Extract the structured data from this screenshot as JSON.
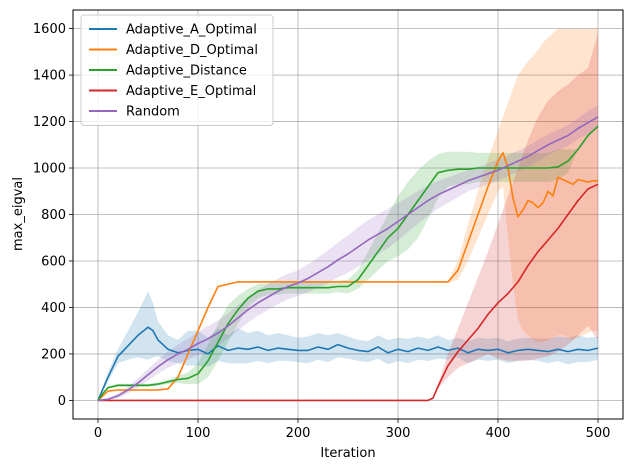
{
  "chart_data": {
    "type": "line",
    "title": "",
    "xlabel": "Iteration",
    "ylabel": "max_eigval",
    "xlim": [
      -25,
      525
    ],
    "ylim": [
      -80,
      1680
    ],
    "xticks": [
      0,
      100,
      200,
      300,
      400,
      500
    ],
    "yticks": [
      0,
      200,
      400,
      600,
      800,
      1000,
      1200,
      1400,
      1600
    ],
    "grid": true,
    "legend_position": "top-left",
    "series": [
      {
        "name": "Adaptive_A_Optimal",
        "color": "#1f77b4",
        "x": [
          0,
          10,
          20,
          30,
          40,
          50,
          55,
          60,
          70,
          80,
          90,
          100,
          110,
          120,
          130,
          140,
          150,
          160,
          170,
          180,
          190,
          200,
          210,
          220,
          230,
          240,
          250,
          260,
          270,
          280,
          290,
          300,
          310,
          320,
          330,
          340,
          350,
          360,
          370,
          380,
          390,
          400,
          410,
          420,
          430,
          440,
          450,
          460,
          470,
          480,
          490,
          500
        ],
        "y": [
          0,
          100,
          190,
          235,
          280,
          315,
          300,
          260,
          220,
          205,
          215,
          220,
          200,
          235,
          215,
          225,
          220,
          230,
          215,
          225,
          220,
          215,
          215,
          230,
          220,
          240,
          225,
          215,
          210,
          230,
          205,
          220,
          210,
          225,
          215,
          230,
          215,
          225,
          205,
          220,
          215,
          220,
          205,
          215,
          220,
          215,
          210,
          220,
          210,
          220,
          215,
          225
        ],
        "upper": [
          0,
          120,
          220,
          300,
          380,
          470,
          420,
          340,
          280,
          260,
          300,
          300,
          270,
          310,
          280,
          310,
          290,
          300,
          280,
          290,
          280,
          270,
          275,
          290,
          280,
          290,
          275,
          260,
          255,
          280,
          260,
          270,
          265,
          275,
          265,
          280,
          260,
          270,
          255,
          270,
          265,
          270,
          255,
          265,
          270,
          265,
          265,
          275,
          270,
          280,
          270,
          275
        ],
        "lower": [
          0,
          80,
          160,
          175,
          185,
          175,
          185,
          190,
          170,
          160,
          150,
          150,
          145,
          170,
          160,
          160,
          160,
          170,
          160,
          170,
          170,
          165,
          160,
          175,
          165,
          185,
          180,
          170,
          165,
          180,
          155,
          170,
          160,
          175,
          170,
          180,
          175,
          185,
          160,
          175,
          170,
          175,
          160,
          170,
          175,
          170,
          160,
          170,
          155,
          165,
          165,
          175
        ]
      },
      {
        "name": "Adaptive_D_Optimal",
        "color": "#ff7f0e",
        "x": [
          0,
          10,
          20,
          40,
          60,
          70,
          80,
          90,
          100,
          110,
          120,
          140,
          160,
          200,
          250,
          300,
          330,
          350,
          360,
          370,
          380,
          390,
          400,
          405,
          410,
          415,
          420,
          425,
          430,
          435,
          440,
          445,
          450,
          455,
          460,
          465,
          470,
          475,
          480,
          485,
          490,
          495,
          500
        ],
        "y": [
          0,
          40,
          45,
          45,
          45,
          50,
          100,
          200,
          300,
          400,
          490,
          510,
          510,
          510,
          510,
          510,
          510,
          510,
          560,
          680,
          800,
          920,
          1030,
          1065,
          1000,
          870,
          790,
          820,
          860,
          850,
          830,
          850,
          900,
          880,
          960,
          950,
          940,
          930,
          950,
          945,
          940,
          945,
          945
        ],
        "upper": [
          0,
          42,
          47,
          47,
          47,
          52,
          102,
          202,
          302,
          402,
          492,
          512,
          512,
          512,
          512,
          512,
          512,
          515,
          600,
          760,
          900,
          1040,
          1160,
          1220,
          1280,
          1340,
          1400,
          1430,
          1460,
          1480,
          1510,
          1540,
          1560,
          1580,
          1600,
          1600,
          1600,
          1600,
          1600,
          1600,
          1600,
          1600,
          1600
        ],
        "lower": [
          0,
          38,
          43,
          43,
          43,
          48,
          98,
          198,
          298,
          398,
          488,
          508,
          508,
          508,
          508,
          508,
          508,
          505,
          520,
          600,
          700,
          800,
          900,
          920,
          700,
          500,
          350,
          300,
          280,
          260,
          250,
          250,
          260,
          270,
          280,
          280,
          270,
          260,
          270,
          280,
          290,
          300,
          300
        ]
      },
      {
        "name": "Adaptive_Distance",
        "color": "#2ca02c",
        "x": [
          0,
          5,
          10,
          20,
          30,
          40,
          50,
          60,
          70,
          80,
          90,
          100,
          110,
          120,
          130,
          140,
          150,
          160,
          170,
          180,
          190,
          200,
          210,
          220,
          230,
          240,
          250,
          260,
          270,
          280,
          290,
          300,
          310,
          320,
          330,
          340,
          350,
          360,
          370,
          380,
          390,
          400,
          410,
          420,
          430,
          440,
          450,
          460,
          470,
          480,
          490,
          500
        ],
        "y": [
          0,
          30,
          55,
          65,
          65,
          65,
          65,
          70,
          80,
          90,
          95,
          115,
          170,
          250,
          330,
          390,
          440,
          470,
          480,
          480,
          485,
          485,
          485,
          485,
          485,
          490,
          490,
          520,
          580,
          640,
          700,
          740,
          800,
          860,
          920,
          980,
          990,
          995,
          995,
          1000,
          1000,
          1000,
          1000,
          1000,
          1000,
          1000,
          1000,
          1005,
          1030,
          1080,
          1140,
          1180
        ],
        "upper": [
          0,
          33,
          60,
          72,
          72,
          72,
          72,
          77,
          90,
          105,
          120,
          160,
          240,
          330,
          410,
          450,
          480,
          500,
          505,
          505,
          510,
          510,
          510,
          510,
          510,
          515,
          520,
          560,
          640,
          720,
          800,
          880,
          940,
          990,
          1030,
          1060,
          1070,
          1070,
          1070,
          1065,
          1065,
          1065,
          1065,
          1065,
          1065,
          1065,
          1065,
          1080,
          1080,
          1080,
          1140,
          1180
        ],
        "lower": [
          0,
          27,
          50,
          58,
          58,
          58,
          58,
          63,
          70,
          75,
          70,
          70,
          100,
          170,
          250,
          330,
          400,
          440,
          455,
          455,
          460,
          460,
          460,
          460,
          460,
          465,
          460,
          480,
          520,
          560,
          600,
          620,
          650,
          700,
          780,
          870,
          920,
          930,
          930,
          940,
          940,
          940,
          940,
          940,
          940,
          940,
          940,
          950,
          980,
          1080,
          1140,
          1180
        ]
      },
      {
        "name": "Adaptive_E_Optimal",
        "color": "#d62728",
        "x": [
          0,
          100,
          200,
          300,
          330,
          335,
          340,
          350,
          360,
          370,
          380,
          390,
          400,
          410,
          420,
          430,
          440,
          450,
          460,
          470,
          480,
          490,
          500
        ],
        "y": [
          0,
          0,
          0,
          0,
          0,
          10,
          60,
          150,
          210,
          260,
          310,
          370,
          420,
          460,
          510,
          580,
          640,
          690,
          740,
          800,
          860,
          910,
          930
        ],
        "upper": [
          0,
          0,
          0,
          0,
          0,
          12,
          70,
          200,
          310,
          420,
          530,
          640,
          760,
          880,
          1000,
          1120,
          1220,
          1290,
          1330,
          1360,
          1400,
          1430,
          1580
        ],
        "lower": [
          0,
          0,
          0,
          0,
          0,
          8,
          50,
          100,
          140,
          160,
          180,
          200,
          180,
          170,
          170,
          170,
          180,
          190,
          210,
          240,
          280,
          320,
          260
        ]
      },
      {
        "name": "Random",
        "color": "#9467bd",
        "x": [
          0,
          10,
          20,
          30,
          40,
          50,
          60,
          70,
          80,
          90,
          100,
          110,
          120,
          130,
          140,
          150,
          160,
          170,
          180,
          190,
          200,
          210,
          220,
          230,
          240,
          250,
          260,
          270,
          280,
          290,
          300,
          310,
          320,
          330,
          340,
          350,
          360,
          370,
          380,
          390,
          400,
          410,
          420,
          430,
          440,
          450,
          460,
          470,
          480,
          490,
          500
        ],
        "y": [
          0,
          5,
          20,
          45,
          75,
          110,
          145,
          175,
          200,
          220,
          245,
          265,
          290,
          320,
          355,
          390,
          420,
          445,
          470,
          490,
          505,
          525,
          550,
          575,
          605,
          630,
          660,
          690,
          715,
          740,
          770,
          800,
          830,
          860,
          885,
          905,
          925,
          945,
          960,
          975,
          990,
          1010,
          1030,
          1050,
          1075,
          1100,
          1120,
          1140,
          1170,
          1195,
          1220
        ],
        "upper": [
          0,
          8,
          30,
          60,
          95,
          135,
          175,
          210,
          240,
          265,
          295,
          320,
          345,
          375,
          410,
          445,
          475,
          500,
          525,
          545,
          560,
          585,
          615,
          645,
          680,
          710,
          745,
          775,
          800,
          825,
          850,
          875,
          900,
          925,
          945,
          960,
          975,
          990,
          1005,
          1020,
          1035,
          1055,
          1075,
          1095,
          1120,
          1145,
          1165,
          1185,
          1215,
          1245,
          1270
        ],
        "lower": [
          0,
          2,
          10,
          30,
          55,
          85,
          115,
          140,
          160,
          175,
          195,
          210,
          235,
          265,
          300,
          335,
          365,
          390,
          415,
          435,
          450,
          465,
          485,
          505,
          530,
          550,
          575,
          605,
          630,
          655,
          690,
          725,
          760,
          795,
          825,
          850,
          875,
          900,
          915,
          930,
          945,
          965,
          985,
          1005,
          1030,
          1055,
          1075,
          1095,
          1125,
          1145,
          1170
        ]
      }
    ]
  }
}
